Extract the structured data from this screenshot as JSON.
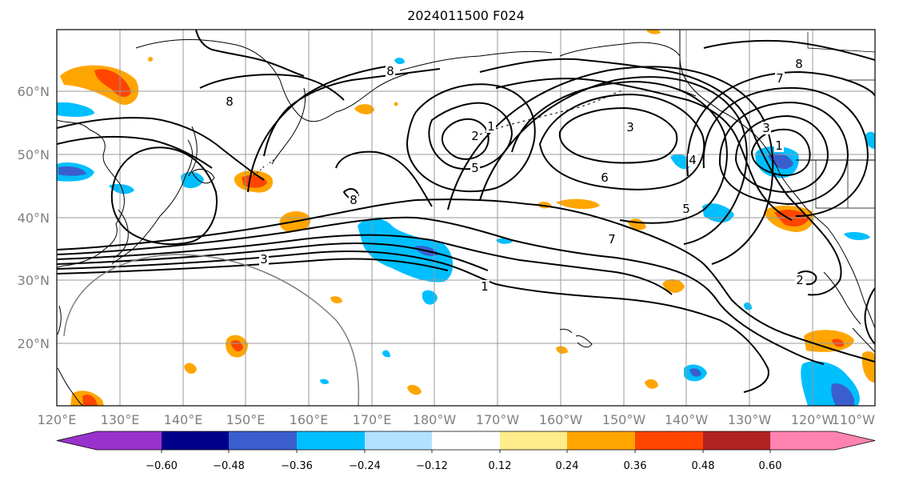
{
  "title": "2024011500 F024",
  "map": {
    "lat_labels": [
      "60°N",
      "50°N",
      "40°N",
      "30°N",
      "20°N"
    ],
    "lon_labels": [
      "120°E",
      "130°E",
      "140°E",
      "150°E",
      "160°E",
      "170°E",
      "180°W",
      "170°W",
      "160°W",
      "150°W",
      "140°W",
      "130°W",
      "120°W",
      "110°W"
    ],
    "contour_labels": [
      "8",
      "8",
      "7",
      "8",
      "3",
      "2",
      "1",
      "5",
      "3",
      "6",
      "5",
      "4",
      "3",
      "1",
      "7",
      "8",
      "1",
      "2"
    ],
    "colors": {
      "coast": "#000000",
      "grid": "#9a9a9a",
      "contour": "#000000",
      "circle": "#808080"
    }
  },
  "colorbar": {
    "colors": [
      "#9932cc",
      "#00008b",
      "#3a5fcd",
      "#00bfff",
      "#b0e2ff",
      "#ffffff",
      "#ffec8b",
      "#ffa500",
      "#ff4500",
      "#b22222",
      "#ff83b0"
    ],
    "labels": [
      "−0.60",
      "−0.48",
      "−0.36",
      "−0.24",
      "−0.12",
      "0.12",
      "0.24",
      "0.36",
      "0.48",
      "0.60"
    ]
  }
}
